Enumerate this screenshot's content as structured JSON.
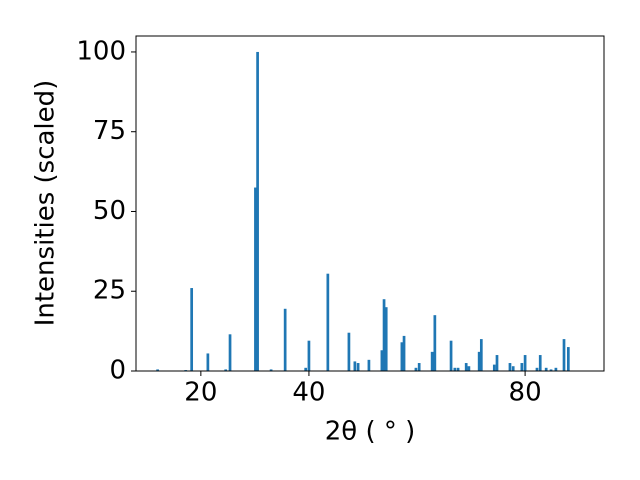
{
  "chart_data": {
    "type": "bar",
    "xlabel": "2θ ( ° )",
    "ylabel": "Intensities (scaled)",
    "x": [
      12.0,
      17.2,
      18.3,
      21.3,
      24.6,
      25.4,
      30.1,
      30.5,
      33.0,
      35.6,
      39.4,
      40.0,
      43.5,
      47.4,
      48.5,
      49.1,
      51.1,
      53.5,
      53.9,
      54.3,
      57.2,
      57.6,
      59.8,
      60.4,
      62.8,
      63.3,
      66.3,
      67.0,
      67.6,
      69.1,
      69.6,
      71.5,
      71.9,
      74.3,
      74.8,
      77.2,
      77.8,
      79.4,
      80.0,
      82.2,
      82.8,
      83.9,
      84.8,
      85.7,
      87.2,
      88.0
    ],
    "values": [
      0.5,
      0.3,
      26,
      5.5,
      0.5,
      11.5,
      57.5,
      100,
      0.5,
      19.5,
      1,
      9.5,
      30.5,
      12,
      3,
      2.5,
      3.5,
      6.5,
      22.5,
      20,
      9,
      11,
      1,
      2.5,
      6,
      17.5,
      9.5,
      1,
      1,
      2.5,
      1.5,
      6,
      10,
      2,
      5,
      2.5,
      1.5,
      2.5,
      5,
      1,
      5,
      1,
      0.5,
      1,
      10,
      7.5
    ],
    "color": "#1f77b4",
    "xlim": [
      8,
      94.6
    ],
    "ylim": [
      0,
      105
    ],
    "xticks": [
      20,
      40,
      80
    ],
    "yticks": [
      0,
      25,
      50,
      75,
      100
    ],
    "grid": false
  }
}
